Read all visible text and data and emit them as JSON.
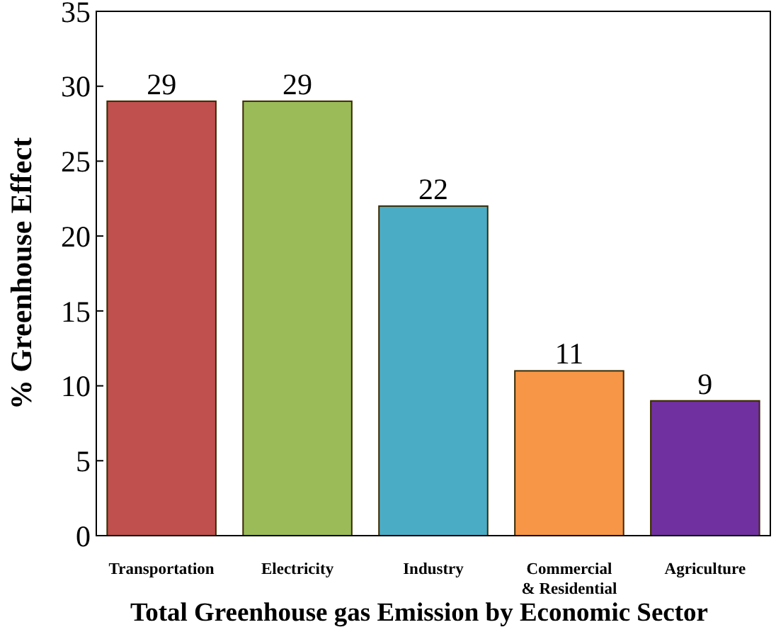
{
  "chart_data": {
    "type": "bar",
    "xlabel": "Total Greenhouse gas Emission by Economic Sector",
    "ylabel": "% Greenhouse Effect",
    "categories": [
      "Transportation",
      "Electricity",
      "Industry",
      "Commercial\n& Residential",
      "Agriculture"
    ],
    "values": [
      29,
      29,
      22,
      11,
      9
    ],
    "colors": [
      "#c0504d",
      "#9bbb59",
      "#4bacc6",
      "#f79646",
      "#7030a0"
    ],
    "ylim": [
      0,
      35
    ],
    "yticks": [
      0,
      5,
      10,
      15,
      20,
      25,
      30,
      35
    ],
    "data_labels": true,
    "grid": false
  }
}
